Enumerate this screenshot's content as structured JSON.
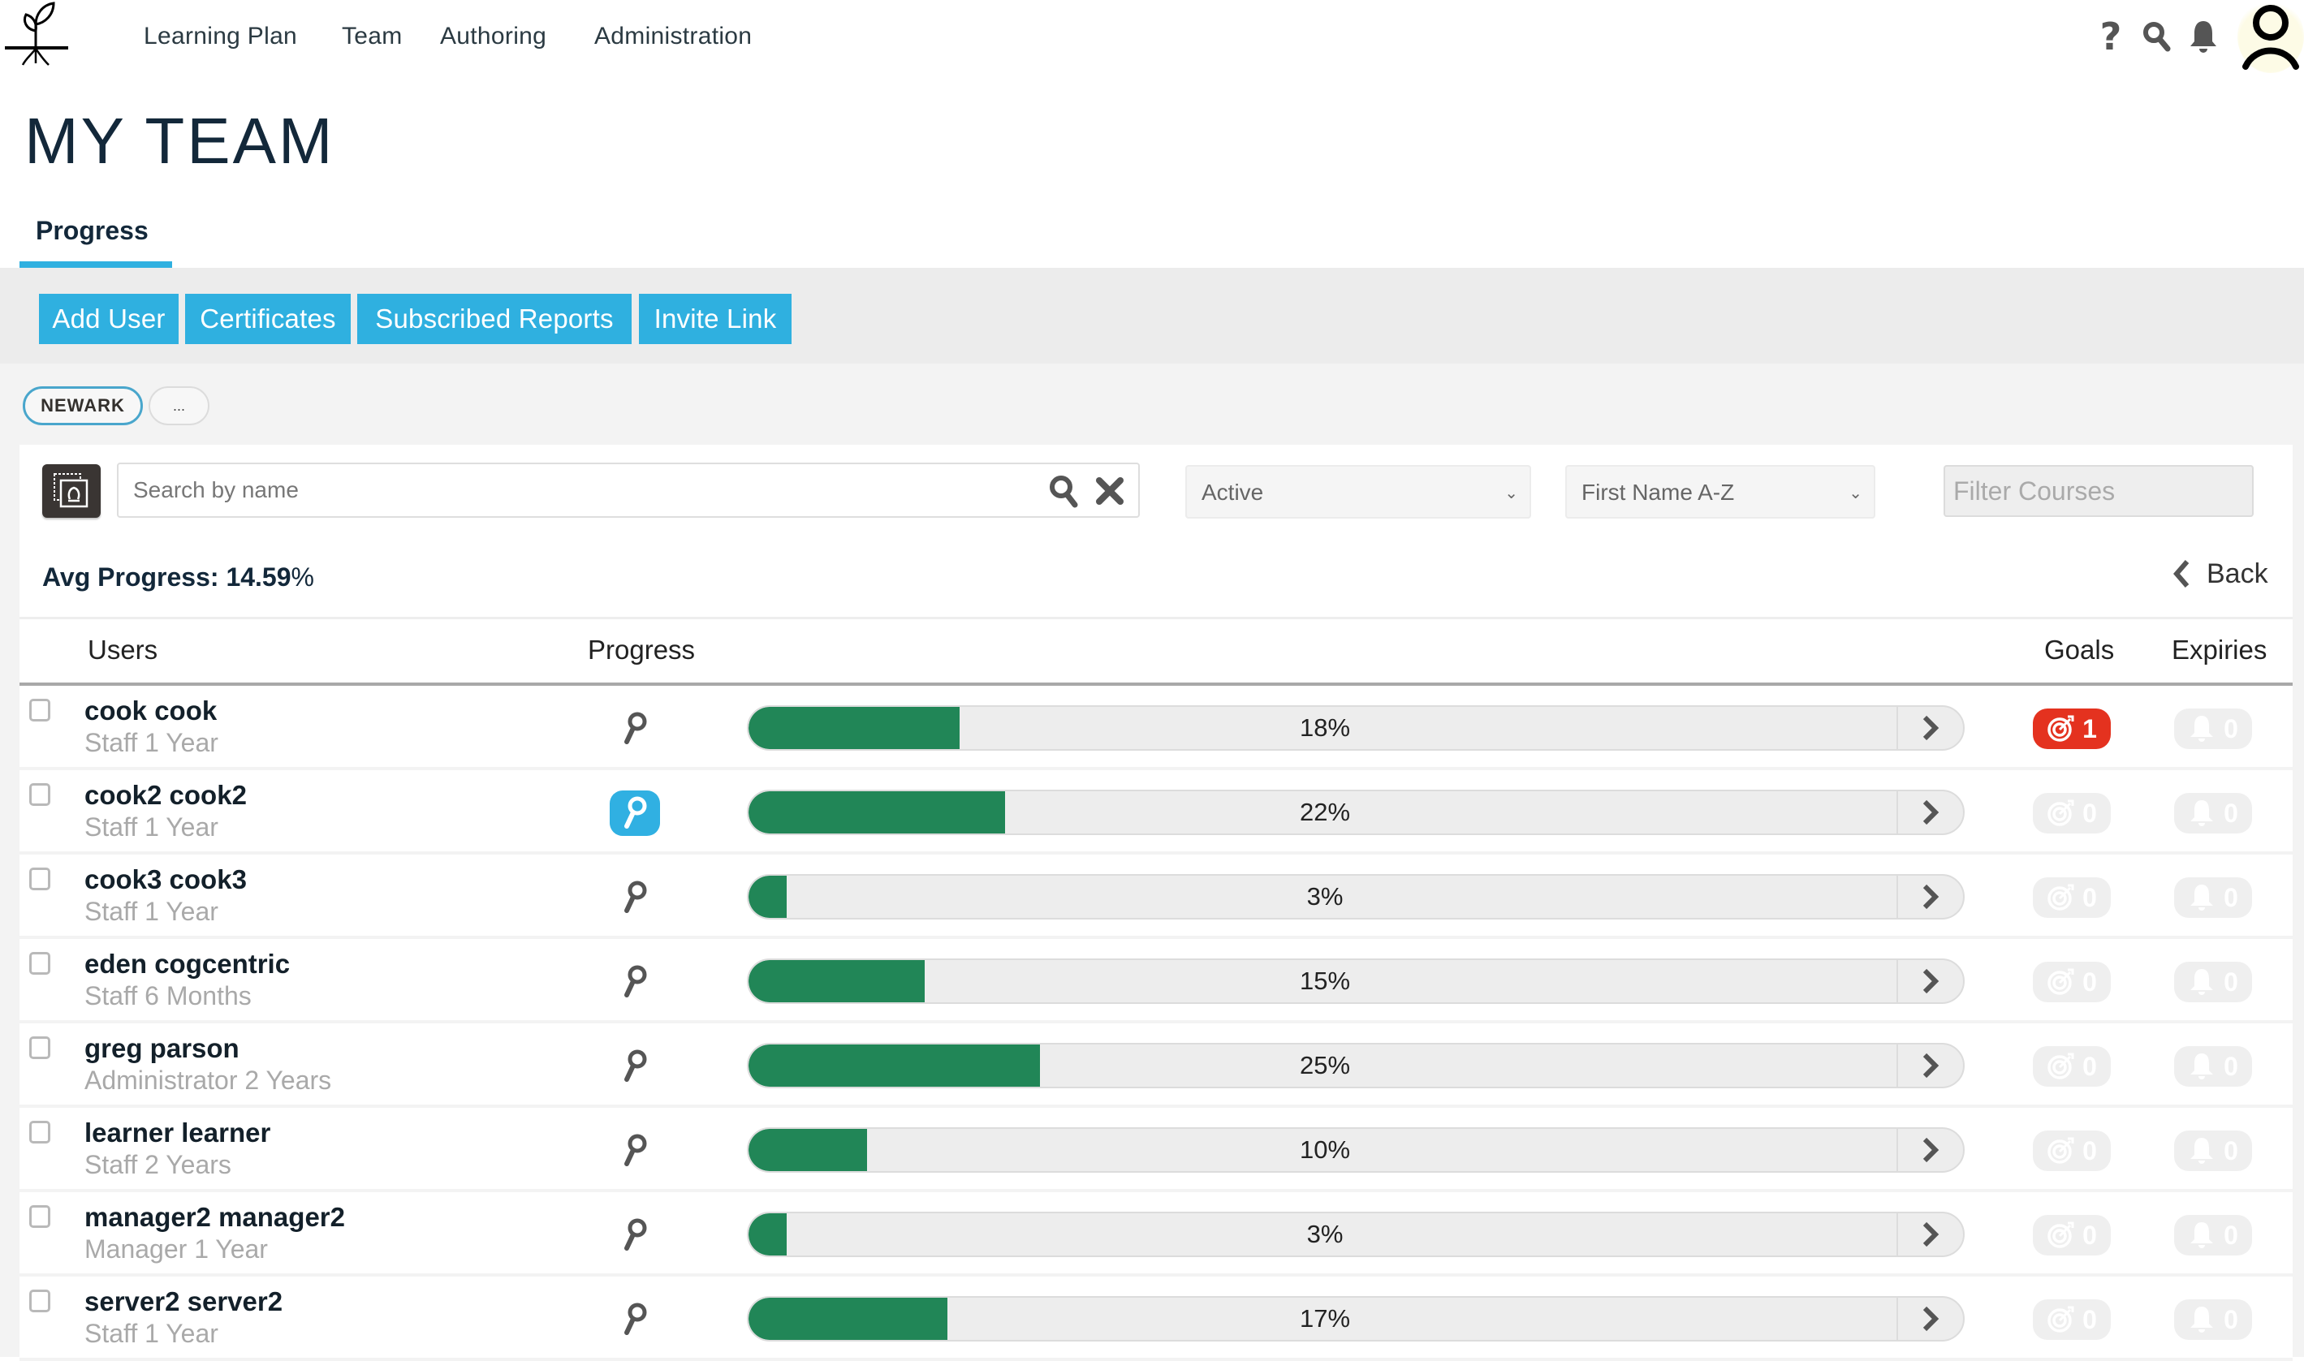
{
  "nav": {
    "items": [
      {
        "label": "Learning Plan"
      },
      {
        "label": "Team"
      },
      {
        "label": "Authoring"
      },
      {
        "label": "Administration"
      }
    ],
    "icons": [
      "help-icon",
      "search-icon",
      "bell-icon",
      "user-avatar-icon"
    ]
  },
  "page": {
    "title": "MY TEAM",
    "tab": "Progress"
  },
  "actions": {
    "add_user": "Add User",
    "certificates": "Certificates",
    "subscribed_reports": "Subscribed Reports",
    "invite_link": "Invite Link"
  },
  "chips": {
    "location": "NEWARK",
    "more": "..."
  },
  "filters": {
    "search_placeholder": "Search by name",
    "status_selected": "Active",
    "sort_selected": "First Name A-Z",
    "filter_courses_placeholder": "Filter Courses"
  },
  "summary": {
    "avg_label": "Avg Progress:",
    "avg_value": "14.59",
    "avg_unit": "%",
    "back": "Back"
  },
  "table": {
    "headers": {
      "users": "Users",
      "progress": "Progress",
      "goals": "Goals",
      "expiries": "Expiries"
    },
    "rows": [
      {
        "name": "cook cook",
        "role": "Staff 1 Year",
        "progress": 18,
        "progress_label": "18%",
        "goals": "1",
        "expiries": "0",
        "goals_active": true,
        "icon_active": false
      },
      {
        "name": "cook2 cook2",
        "role": "Staff 1 Year",
        "progress": 22,
        "progress_label": "22%",
        "goals": "0",
        "expiries": "0",
        "goals_active": false,
        "icon_active": true
      },
      {
        "name": "cook3 cook3",
        "role": "Staff 1 Year",
        "progress": 3,
        "progress_label": "3%",
        "goals": "0",
        "expiries": "0",
        "goals_active": false,
        "icon_active": false
      },
      {
        "name": "eden cogcentric",
        "role": "Staff 6 Months",
        "progress": 15,
        "progress_label": "15%",
        "goals": "0",
        "expiries": "0",
        "goals_active": false,
        "icon_active": false
      },
      {
        "name": "greg parson",
        "role": "Administrator 2 Years",
        "progress": 25,
        "progress_label": "25%",
        "goals": "0",
        "expiries": "0",
        "goals_active": false,
        "icon_active": false
      },
      {
        "name": "learner learner",
        "role": "Staff 2 Years",
        "progress": 10,
        "progress_label": "10%",
        "goals": "0",
        "expiries": "0",
        "goals_active": false,
        "icon_active": false
      },
      {
        "name": "manager2 manager2",
        "role": "Manager 1 Year",
        "progress": 3,
        "progress_label": "3%",
        "goals": "0",
        "expiries": "0",
        "goals_active": false,
        "icon_active": false
      },
      {
        "name": "server2 server2",
        "role": "Staff 1 Year",
        "progress": 17,
        "progress_label": "17%",
        "goals": "0",
        "expiries": "0",
        "goals_active": false,
        "icon_active": false
      }
    ]
  },
  "colors": {
    "accent": "#2fb0e0",
    "progress_fill": "#218657",
    "goal_alert": "#e4321f",
    "title": "#13283a"
  }
}
